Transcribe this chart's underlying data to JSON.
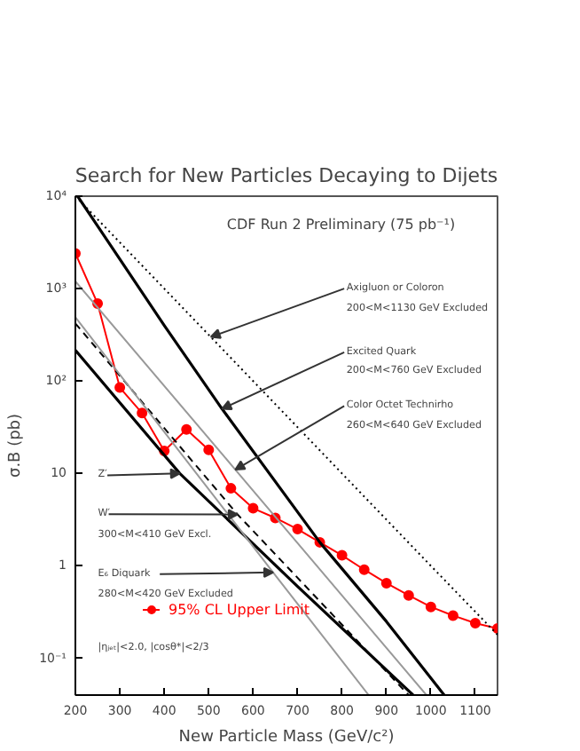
{
  "chart_data": {
    "type": "line",
    "title": "Search for New Particles Decaying to Dijets",
    "xlabel": "New Particle Mass (GeV/c²)",
    "ylabel": "σ.B (pb)",
    "log": "y",
    "grid": false,
    "legend": "bottom left",
    "xlim": [
      200,
      1150
    ],
    "ylim": [
      0.04,
      10000
    ],
    "xticks": [
      200,
      300,
      400,
      500,
      600,
      700,
      800,
      900,
      1000,
      1100
    ],
    "yticks": [
      {
        "value": 0.1,
        "label": "10⁻¹"
      },
      1,
      10,
      {
        "value": 100,
        "label": "10²"
      },
      {
        "value": 1000,
        "label": "10³"
      },
      {
        "value": 10000,
        "label": "10⁴"
      }
    ],
    "series": [
      {
        "name": "95% CL Upper Limit",
        "color": "#ff0000",
        "marker": "circle",
        "line_style": "solid",
        "x": [
          200,
          250,
          300,
          350,
          400,
          450,
          500,
          550,
          600,
          650,
          700,
          750,
          800,
          850,
          900,
          950,
          1000,
          1050,
          1100,
          1150
        ],
        "values": [
          2400,
          690,
          85,
          45,
          17.5,
          30,
          18,
          6.9,
          4.2,
          3.3,
          2.5,
          1.8,
          1.3,
          0.91,
          0.65,
          0.48,
          0.36,
          0.29,
          0.24,
          0.21
        ]
      },
      {
        "color": "#000000",
        "marker": "none",
        "line_style": "dotted",
        "x": [
          200,
          400,
          600,
          800,
          1000,
          1150
        ],
        "values": [
          10000,
          1000,
          100,
          10,
          1,
          0.18
        ]
      },
      {
        "color": "#000000",
        "marker": "none",
        "line_style": "solid",
        "x": [
          205,
          400,
          530,
          750,
          900,
          1030
        ],
        "values": [
          10000,
          400,
          50,
          1.8,
          0.25,
          0.04
        ]
      },
      {
        "color": "#999999",
        "marker": "none",
        "line_style": "solid",
        "x": [
          200,
          560,
          990
        ],
        "values": [
          1200,
          11,
          0.04
        ]
      },
      {
        "color": "#000000",
        "marker": "none",
        "line_style": "solid",
        "x": [
          200,
          435,
          700,
          960
        ],
        "values": [
          215,
          10,
          0.6,
          0.04
        ]
      },
      {
        "color": "#000000",
        "marker": "none",
        "line_style": "dashed",
        "x": [
          200,
          565,
          950
        ],
        "values": [
          420,
          3.6,
          0.04
        ]
      },
      {
        "color": "#999999",
        "marker": "none",
        "line_style": "solid",
        "x": [
          200,
          645,
          860
        ],
        "values": [
          490,
          0.85,
          0.04
        ]
      }
    ],
    "annotations": [
      "CDF Run 2 Preliminary (75 pb⁻¹)",
      {
        "text": "Axigluon or Coloron",
        "x": 505,
        "y": 300
      },
      "200<M<1130 GeV Excluded",
      {
        "text": "Excited Quark",
        "x": 530,
        "y": 50
      },
      "200<M<760 GeV Excluded",
      {
        "text": "Color Octet Technirho",
        "x": 560,
        "y": 11
      },
      "260<M<640 GeV Excluded",
      {
        "text": "Z′",
        "x": 435,
        "y": 10
      },
      {
        "text": "W′",
        "x": 565,
        "y": 3.6
      },
      "300<M<410 GeV Excl.",
      {
        "text": "E₆ Diquark",
        "x": 645,
        "y": 0.85
      },
      "280<M<420 GeV Excluded",
      "|ηⱼₑₜ|<2.0,   |cosθ*|<2/3"
    ]
  }
}
